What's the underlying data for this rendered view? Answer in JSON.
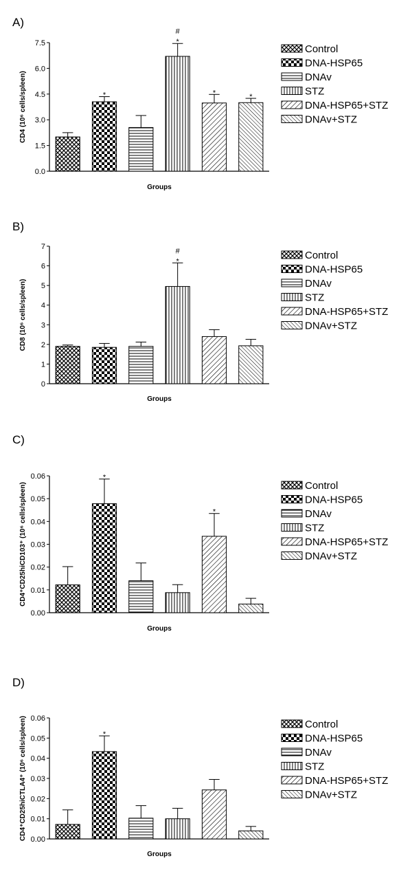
{
  "legend": [
    "Control",
    "DNA-HSP65",
    "DNAv",
    "STZ",
    "DNA-HSP65+STZ",
    "DNAv+STZ"
  ],
  "chart_data": [
    {
      "panel": "A)",
      "type": "bar",
      "categories": [
        "Control",
        "DNA-HSP65",
        "DNAv",
        "STZ",
        "DNA-HSP65+STZ",
        "DNAv+STZ"
      ],
      "values": [
        2.0,
        4.05,
        2.55,
        6.7,
        3.98,
        4.0
      ],
      "errors": [
        0.25,
        0.3,
        0.7,
        0.75,
        0.5,
        0.25
      ],
      "annotations": [
        "",
        "*",
        "",
        "#\n*",
        "*",
        "*"
      ],
      "xlabel": "Groups",
      "ylabel": "CD4 (10⁶ cells/spleen)",
      "ylim": [
        0,
        7.5
      ],
      "yticks": [
        "0.0",
        "1.5",
        "3.0",
        "4.5",
        "6.0",
        "7.5"
      ],
      "ytick_values": [
        0,
        1.5,
        3,
        4.5,
        6,
        7.5
      ]
    },
    {
      "panel": "B)",
      "type": "bar",
      "categories": [
        "Control",
        "DNA-HSP65",
        "DNAv",
        "STZ",
        "DNA-HSP65+STZ",
        "DNAv+STZ"
      ],
      "values": [
        1.9,
        1.85,
        1.9,
        4.95,
        2.4,
        1.93
      ],
      "errors": [
        0.07,
        0.2,
        0.22,
        1.2,
        0.35,
        0.33
      ],
      "annotations": [
        "",
        "",
        "",
        "#\n*",
        "",
        ""
      ],
      "xlabel": "Groups",
      "ylabel": "CD8 (10⁶ cells/spleen)",
      "ylim": [
        0,
        7
      ],
      "yticks": [
        "0",
        "1",
        "2",
        "3",
        "4",
        "5",
        "6",
        "7"
      ],
      "ytick_values": [
        0,
        1,
        2,
        3,
        4,
        5,
        6,
        7
      ]
    },
    {
      "panel": "C)",
      "type": "bar",
      "categories": [
        "Control",
        "DNA-HSP65",
        "DNAv",
        "STZ",
        "DNA-HSP65+STZ",
        "DNAv+STZ"
      ],
      "values": [
        0.0122,
        0.0478,
        0.014,
        0.0088,
        0.0335,
        0.0038
      ],
      "errors": [
        0.008,
        0.0108,
        0.0078,
        0.0035,
        0.01,
        0.0025
      ],
      "annotations": [
        "",
        "*",
        "",
        "",
        "*",
        ""
      ],
      "xlabel": "Groups",
      "ylabel": "CD4⁺CD25hiCD103⁺ (10⁶ cells/spleen)",
      "ylim": [
        0,
        0.06
      ],
      "yticks": [
        "0.00",
        "0.01",
        "0.02",
        "0.03",
        "0.04",
        "0.05",
        "0.06"
      ],
      "ytick_values": [
        0,
        0.01,
        0.02,
        0.03,
        0.04,
        0.05,
        0.06
      ]
    },
    {
      "panel": "D)",
      "type": "bar",
      "categories": [
        "Control",
        "DNA-HSP65",
        "DNAv",
        "STZ",
        "DNA-HSP65+STZ",
        "DNAv+STZ"
      ],
      "values": [
        0.0072,
        0.0433,
        0.0103,
        0.01,
        0.0243,
        0.004
      ],
      "errors": [
        0.0072,
        0.0078,
        0.0062,
        0.0052,
        0.0052,
        0.0022
      ],
      "annotations": [
        "",
        "*",
        "",
        "",
        "",
        ""
      ],
      "xlabel": "Groups",
      "ylabel": "CD4⁺CD25hiCTLA4⁺ (10⁶ cells/spleen)",
      "ylim": [
        0,
        0.06
      ],
      "yticks": [
        "0.00",
        "0.01",
        "0.02",
        "0.03",
        "0.04",
        "0.05",
        "0.06"
      ],
      "ytick_values": [
        0,
        0.01,
        0.02,
        0.03,
        0.04,
        0.05,
        0.06
      ]
    }
  ]
}
